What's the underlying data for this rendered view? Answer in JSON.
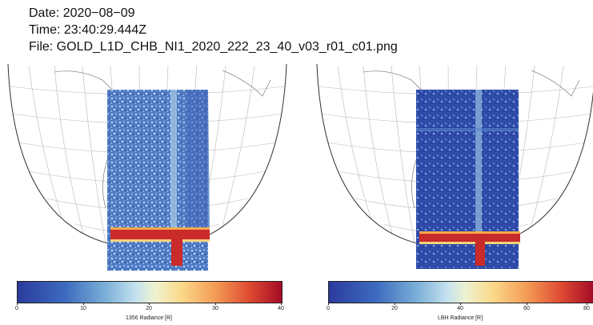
{
  "header": {
    "date_line": "Date: 2020−08−09",
    "time_line": "Time: 23:40:29.444Z",
    "file_line": "File: GOLD_L1D_CHB_NI1_2020_222_23_40_v03_r01_c01.png"
  },
  "panels": [
    {
      "colorbar": {
        "label": "1356 Radiance [R]",
        "ticks": [
          "0",
          "10",
          "20",
          "30",
          "40"
        ],
        "min": 0,
        "max": 40
      }
    },
    {
      "colorbar": {
        "label": "LBH Radiance [R]",
        "ticks": [
          "0",
          "20",
          "40",
          "60",
          "80"
        ],
        "min": 0,
        "max": 80
      }
    }
  ],
  "colors": {
    "colormap": [
      "#2b3b9c",
      "#3d6bbf",
      "#79aed7",
      "#c6e2ef",
      "#eef2cf",
      "#fbd98a",
      "#f39b55",
      "#de4a32",
      "#a50c26"
    ],
    "grid": "#b0b0b0",
    "coastline": "#888888"
  }
}
